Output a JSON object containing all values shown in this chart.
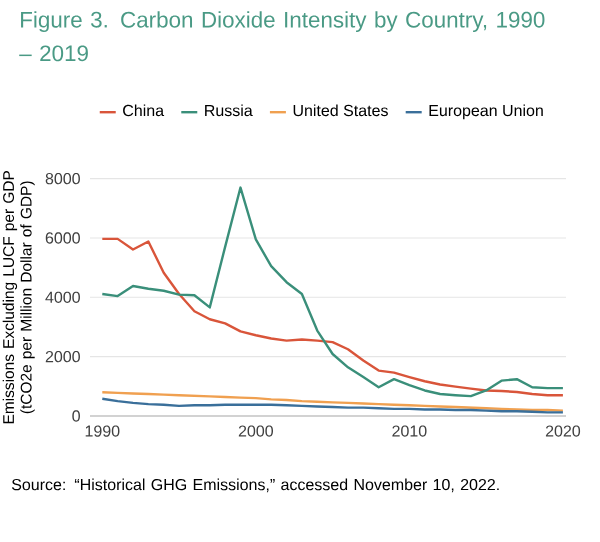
{
  "chart_data": {
    "type": "line",
    "title": "Figure 3. Carbon Dioxide Intensity by Country, 1990 – 2019",
    "ylabel": "Emissions Excluding LUCF per GDP (tCO2e per Million Dollar of GDP)",
    "x": [
      1990,
      1991,
      1992,
      1993,
      1994,
      1995,
      1996,
      1997,
      1998,
      1999,
      2000,
      2001,
      2002,
      2003,
      2004,
      2005,
      2006,
      2007,
      2008,
      2009,
      2010,
      2011,
      2012,
      2013,
      2014,
      2015,
      2016,
      2017,
      2018,
      2019,
      2020
    ],
    "series": [
      {
        "name": "China",
        "color": "#d9553a",
        "values": [
          5970,
          5970,
          5610,
          5880,
          4830,
          4110,
          3530,
          3260,
          3120,
          2850,
          2720,
          2610,
          2540,
          2580,
          2540,
          2490,
          2250,
          1870,
          1530,
          1460,
          1310,
          1170,
          1060,
          990,
          920,
          860,
          840,
          810,
          740,
          700,
          700
        ]
      },
      {
        "name": "Russia",
        "color": "#3a8f7a",
        "values": [
          4110,
          4040,
          4380,
          4290,
          4220,
          4090,
          4070,
          3660,
          5700,
          7700,
          5950,
          5050,
          4510,
          4110,
          2880,
          2090,
          1640,
          1310,
          970,
          1240,
          1040,
          860,
          740,
          700,
          670,
          860,
          1190,
          1240,
          970,
          940,
          940
        ]
      },
      {
        "name": "United States",
        "color": "#f0a050",
        "values": [
          800,
          780,
          760,
          740,
          720,
          700,
          680,
          660,
          640,
          620,
          600,
          560,
          540,
          500,
          480,
          460,
          440,
          420,
          400,
          380,
          360,
          340,
          320,
          300,
          280,
          260,
          240,
          220,
          200,
          200,
          180
        ]
      },
      {
        "name": "European Union",
        "color": "#3a6f9a",
        "values": [
          580,
          500,
          440,
          400,
          380,
          340,
          360,
          360,
          380,
          380,
          380,
          380,
          360,
          340,
          320,
          300,
          280,
          280,
          260,
          240,
          240,
          220,
          220,
          200,
          200,
          180,
          160,
          160,
          140,
          120,
          120
        ]
      }
    ],
    "xlim": [
      1989.2,
      2020.2
    ],
    "ylim": [
      0,
      8000
    ],
    "xticks": [
      1990,
      2000,
      2010,
      2020
    ],
    "yticks": [
      0,
      2000,
      4000,
      6000,
      8000
    ],
    "grid": "y",
    "legend": "top left",
    "line_style": "solid",
    "annotations": [
      "Source: “Historical GHG Emissions,” accessed November 10, 2022."
    ]
  }
}
